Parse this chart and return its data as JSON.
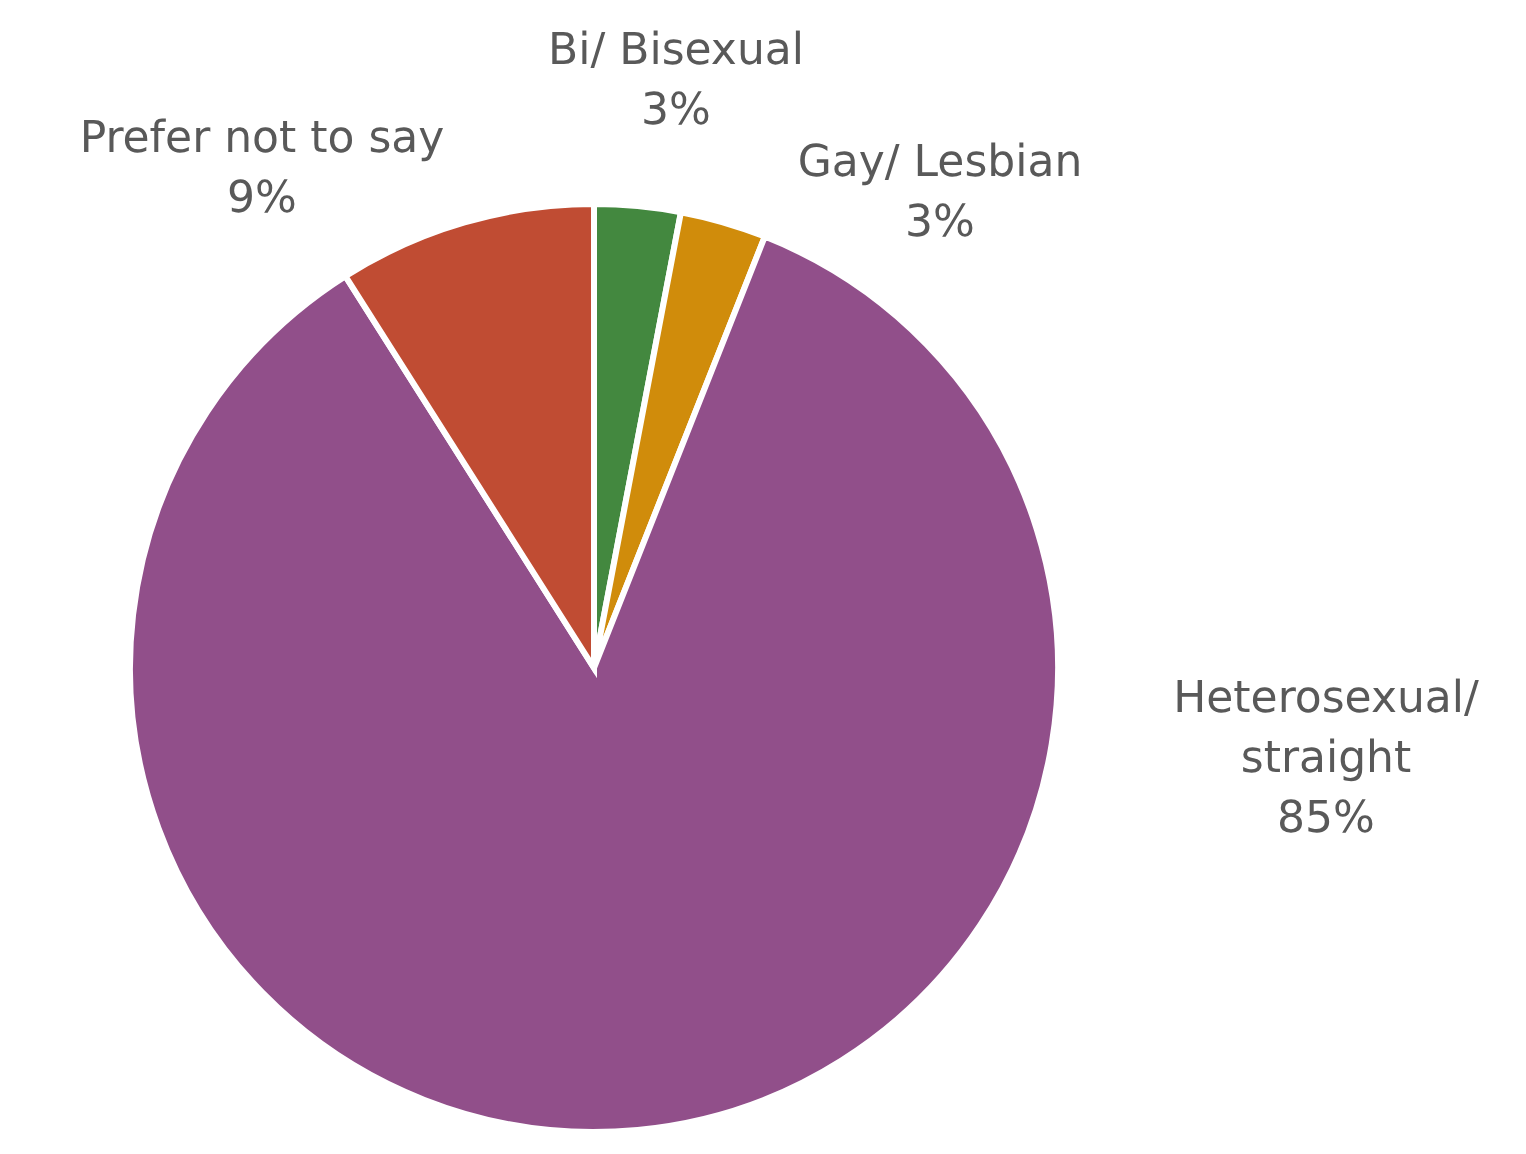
{
  "chart_data": {
    "type": "pie",
    "categories": [
      "Bi/ Bisexual",
      "Gay/ Lesbian",
      "Heterosexual/ straight",
      "Prefer not to say"
    ],
    "values": [
      3,
      3,
      85,
      9
    ],
    "value_labels": [
      "3%",
      "3%",
      "85%",
      "9%"
    ],
    "colors": [
      "#43883f",
      "#d08c0b",
      "#914f8a",
      "#c04c33"
    ]
  }
}
